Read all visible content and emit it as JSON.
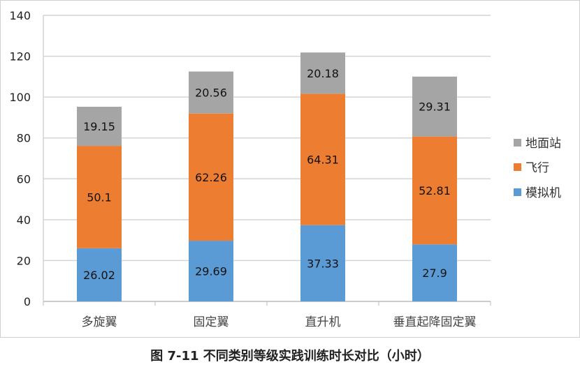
{
  "chart_data": {
    "type": "bar",
    "stacked": true,
    "title": "图 7-11 不同类别等级实践训练时长对比（小时）",
    "categories": [
      "多旋翼",
      "固定翼",
      "直升机",
      "垂直起降固定翼"
    ],
    "series": [
      {
        "name": "模拟机",
        "color": "#5b9bd5",
        "values": [
          26.02,
          29.69,
          37.33,
          27.9
        ]
      },
      {
        "name": "飞行",
        "color": "#ed7d31",
        "values": [
          50.1,
          62.26,
          64.31,
          52.81
        ]
      },
      {
        "name": "地面站",
        "color": "#a5a5a5",
        "values": [
          19.15,
          20.56,
          20.18,
          29.31
        ]
      }
    ],
    "yticks": [
      0,
      20,
      40,
      60,
      80,
      100,
      120,
      140
    ],
    "ylim": [
      0,
      140
    ],
    "grid": true,
    "legend": "right",
    "xlabel": "",
    "ylabel": ""
  }
}
